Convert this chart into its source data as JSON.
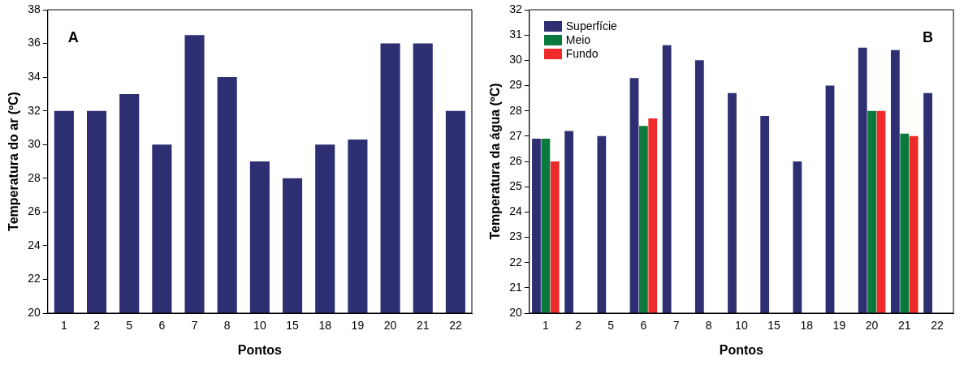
{
  "chart_data": [
    {
      "type": "bar",
      "xlabel": "Pontos",
      "ylabel": "Temperatura do ar (ºC)",
      "annotations": [
        "A"
      ],
      "categories": [
        "1",
        "2",
        "5",
        "6",
        "7",
        "8",
        "10",
        "15",
        "18",
        "19",
        "20",
        "21",
        "22"
      ],
      "values": [
        32,
        32,
        33,
        30,
        36.5,
        34,
        29,
        28,
        30,
        30.3,
        36,
        36,
        32
      ],
      "color": "#2e2e72",
      "ylim": [
        20,
        38
      ],
      "yticks": [
        20,
        22,
        24,
        26,
        28,
        30,
        32,
        34,
        36,
        38
      ],
      "grid": false,
      "legend": false
    },
    {
      "type": "bar",
      "xlabel": "Pontos",
      "ylabel": "Temperatura da água (ºC)",
      "annotations": [
        "B"
      ],
      "categories": [
        "1",
        "2",
        "5",
        "6",
        "7",
        "8",
        "10",
        "15",
        "18",
        "19",
        "20",
        "21",
        "22"
      ],
      "series": [
        {
          "name": "Superfície",
          "color": "#2e2e72",
          "values": [
            26.9,
            27.2,
            27,
            29.3,
            30.6,
            30,
            28.7,
            27.8,
            26,
            29,
            30.5,
            30.4,
            28.7
          ]
        },
        {
          "name": "Meio",
          "color": "#0a7a3c",
          "values": [
            26.9,
            null,
            null,
            27.4,
            null,
            null,
            null,
            null,
            null,
            null,
            28,
            27.1,
            null
          ]
        },
        {
          "name": "Fundo",
          "color": "#ee2a2a",
          "values": [
            26,
            null,
            null,
            27.7,
            null,
            null,
            null,
            null,
            null,
            null,
            28,
            27,
            null
          ]
        }
      ],
      "ylim": [
        20,
        32
      ],
      "yticks": [
        20,
        21,
        22,
        23,
        24,
        25,
        26,
        27,
        28,
        29,
        30,
        31,
        32
      ],
      "grid": false,
      "legend": "top left"
    }
  ]
}
